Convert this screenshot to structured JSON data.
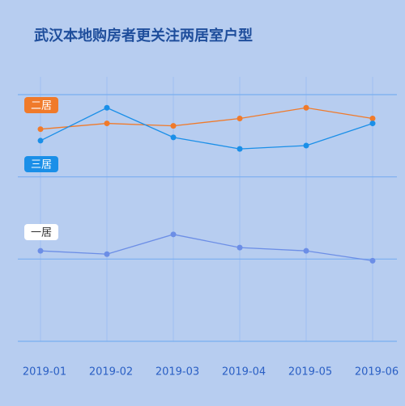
{
  "chart_data": {
    "type": "line",
    "title": "武汉本地购房者更关注两居室户型",
    "categories": [
      "2019-01",
      "2019-02",
      "2019-03",
      "2019-04",
      "2019-05",
      "2019-06"
    ],
    "series": [
      {
        "name": "二居",
        "color": "#f07a2a",
        "values": [
          25.8,
          26.5,
          26.2,
          27.1,
          28.4,
          27.1
        ]
      },
      {
        "name": "三居",
        "color": "#1a8fe8",
        "values": [
          24.4,
          28.4,
          24.8,
          23.4,
          23.8,
          26.5
        ]
      },
      {
        "name": "一居",
        "color": "#6c8ee6",
        "values": [
          11.0,
          10.6,
          13.0,
          11.4,
          11.0,
          9.8
        ]
      }
    ],
    "ylim": [
      0,
      30
    ],
    "yticks": [
      0,
      10,
      20,
      30
    ],
    "grid": true
  }
}
